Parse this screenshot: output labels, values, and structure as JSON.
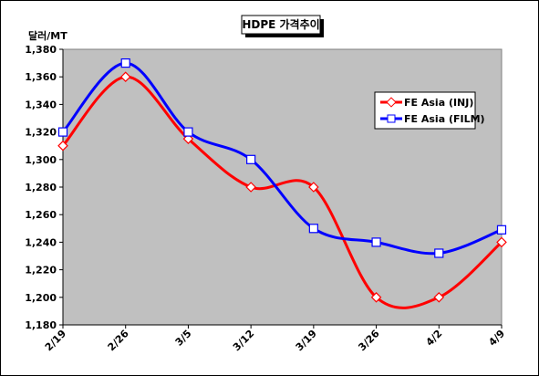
{
  "chart_data": {
    "type": "line",
    "title": "HDPE 가격추이",
    "ylabel": "달러/MT",
    "xlabel": "",
    "categories": [
      "2/19",
      "2/26",
      "3/5",
      "3/12",
      "3/19",
      "3/26",
      "4/2",
      "4/9"
    ],
    "ylim": [
      1180,
      1380
    ],
    "yticks": [
      1180,
      1200,
      1220,
      1240,
      1260,
      1280,
      1300,
      1320,
      1340,
      1360,
      1380
    ],
    "ytick_labels": [
      "1,180",
      "1,200",
      "1,220",
      "1,240",
      "1,260",
      "1,280",
      "1,300",
      "1,320",
      "1,340",
      "1,360",
      "1,380"
    ],
    "grid": false,
    "legend_position": "right",
    "plot_background": "#c0c0c0",
    "series": [
      {
        "name": "FE Asia (INJ)",
        "color": "#ff0000",
        "marker": "diamond",
        "values": [
          1310,
          1360,
          1315,
          1280,
          1280,
          1200,
          1200,
          1240
        ]
      },
      {
        "name": "FE Asia (FILM)",
        "color": "#0000ff",
        "marker": "square",
        "values": [
          1320,
          1370,
          1320,
          1300,
          1250,
          1240,
          1232,
          1249
        ]
      }
    ]
  }
}
